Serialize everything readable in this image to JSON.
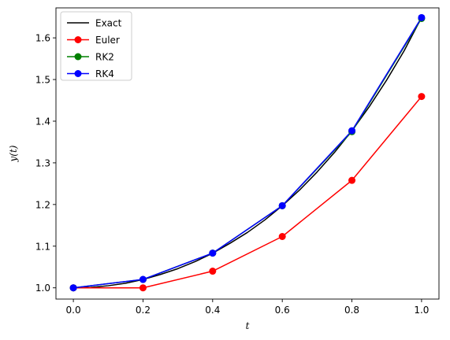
{
  "chart_data": {
    "type": "line",
    "xlabel": "t",
    "ylabel": "y(t)",
    "xlim": [
      -0.05,
      1.05
    ],
    "ylim": [
      0.973,
      1.672
    ],
    "xticks": [
      0.0,
      0.2,
      0.4,
      0.6,
      0.8,
      1.0
    ],
    "xtick_labels": [
      "0.0",
      "0.2",
      "0.4",
      "0.6",
      "0.8",
      "1.0"
    ],
    "yticks": [
      1.0,
      1.1,
      1.2,
      1.3,
      1.4,
      1.5,
      1.6
    ],
    "ytick_labels": [
      "1.0",
      "1.1",
      "1.2",
      "1.3",
      "1.4",
      "1.5",
      "1.6"
    ],
    "grid": false,
    "legend_position": "top-left",
    "series": [
      {
        "name": "Exact",
        "color": "#000000",
        "marker": "none",
        "x": [
          0.0,
          0.05,
          0.1,
          0.15,
          0.2,
          0.25,
          0.3,
          0.35,
          0.4,
          0.45,
          0.5,
          0.55,
          0.6,
          0.65,
          0.7,
          0.75,
          0.8,
          0.85,
          0.9,
          0.95,
          1.0
        ],
        "y": [
          1.0,
          1.001,
          1.005,
          1.011,
          1.02,
          1.032,
          1.046,
          1.063,
          1.083,
          1.107,
          1.133,
          1.163,
          1.197,
          1.235,
          1.278,
          1.325,
          1.377,
          1.435,
          1.499,
          1.569,
          1.6487
        ]
      },
      {
        "name": "Euler",
        "color": "#ff0000",
        "marker": "circle",
        "x": [
          0.0,
          0.2,
          0.4,
          0.6,
          0.8,
          1.0
        ],
        "y": [
          1.0,
          1.0,
          1.04,
          1.1232,
          1.258,
          1.4593
        ]
      },
      {
        "name": "RK2",
        "color": "#008000",
        "marker": "circle",
        "x": [
          0.0,
          0.2,
          0.4,
          0.6,
          0.8,
          1.0
        ],
        "y": [
          1.0,
          1.02,
          1.0833,
          1.197,
          1.3749,
          1.6466
        ]
      },
      {
        "name": "RK4",
        "color": "#0000ff",
        "marker": "circle",
        "x": [
          0.0,
          0.2,
          0.4,
          0.6,
          0.8,
          1.0
        ],
        "y": [
          1.0,
          1.0202,
          1.0833,
          1.1972,
          1.3771,
          1.6487
        ]
      }
    ]
  }
}
